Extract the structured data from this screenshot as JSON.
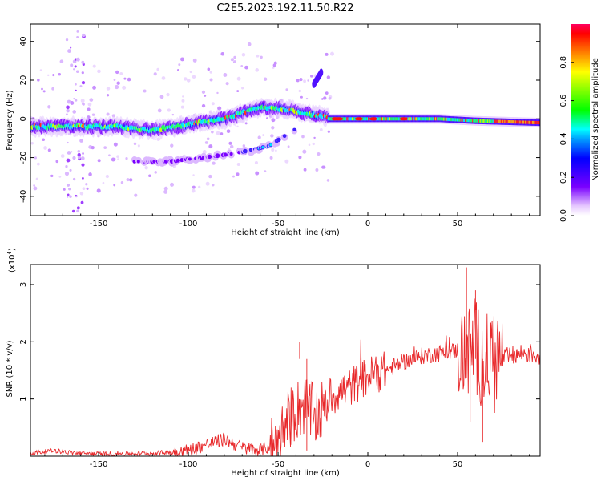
{
  "title": "C2E5.2023.192.11.50.R22",
  "chart_data": [
    {
      "type": "heatmap",
      "xlabel": "Height of straight line (km)",
      "ylabel": "Frequency (Hz)",
      "xlim": [
        -188,
        96
      ],
      "ylim": [
        -50,
        49
      ],
      "xticks": [
        -150,
        -100,
        -50,
        0,
        50
      ],
      "yticks": [
        -40,
        -20,
        0,
        20,
        40
      ],
      "colorbar": {
        "label": "Normalized spectral amplitude",
        "range": [
          0,
          1
        ],
        "ticks": [
          "0.0",
          "0.2",
          "0.4",
          "0.6",
          "0.8"
        ],
        "colormap": "rainbow (white-violet-blue-cyan-green-yellow-red-pink)"
      },
      "features": [
        {
          "name": "main spectral band",
          "x_range": [
            -188,
            -22
          ],
          "y_center": [
            [
              -188,
              -4
            ],
            [
              -140,
              -4
            ],
            [
              -120,
              -6
            ],
            [
              -100,
              -3
            ],
            [
              -80,
              0
            ],
            [
              -60,
              6
            ],
            [
              -45,
              5
            ],
            [
              -30,
              2
            ],
            [
              -22,
              1
            ]
          ]
        },
        {
          "name": "narrow band",
          "x_range": [
            -22,
            96
          ],
          "y_center": [
            [
              -22,
              0
            ],
            [
              0,
              0
            ],
            [
              40,
              0
            ],
            [
              60,
              -1
            ],
            [
              96,
              -2
            ]
          ]
        },
        {
          "name": "lower branch",
          "x_range": [
            -130,
            -40
          ],
          "y_center": [
            [
              -130,
              -22
            ],
            [
              -110,
              -22
            ],
            [
              -75,
              -18
            ],
            [
              -55,
              -14
            ],
            [
              -40,
              -5
            ]
          ]
        },
        {
          "name": "upper branch",
          "x_range": [
            -30,
            -26
          ],
          "y_center": [
            [
              -30,
              18
            ],
            [
              -26,
              24
            ]
          ]
        }
      ]
    },
    {
      "type": "line",
      "xlabel": "Height of straight line (km)",
      "ylabel": "SNR (10 * v/v)",
      "yscale_label": "(x10",
      "yscale_exp": "4",
      "yscale_close": ")",
      "xlim": [
        -188,
        96
      ],
      "ylim": [
        0,
        3.35
      ],
      "xticks": [
        -150,
        -100,
        -50,
        0,
        50
      ],
      "yticks": [
        1,
        2,
        3
      ],
      "series": [
        {
          "color": "#e8282a",
          "x": [
            -188,
            -175,
            -165,
            -150,
            -120,
            -100,
            -90,
            -80,
            -70,
            -60,
            -50,
            -45,
            -40,
            -35,
            -30,
            -25,
            -20,
            -10,
            0,
            10,
            20,
            30,
            40,
            50,
            55,
            60,
            65,
            70,
            75,
            80,
            85,
            90,
            96
          ],
          "y": [
            0.05,
            0.1,
            0.06,
            0.04,
            0.05,
            0.1,
            0.2,
            0.3,
            0.15,
            0.1,
            0.25,
            0.6,
            0.8,
            0.9,
            0.7,
            0.8,
            1.05,
            1.2,
            1.4,
            1.5,
            1.65,
            1.75,
            1.8,
            1.85,
            1.8,
            1.9,
            1.6,
            1.8,
            1.7,
            1.75,
            1.8,
            1.8,
            1.75
          ]
        }
      ]
    }
  ]
}
